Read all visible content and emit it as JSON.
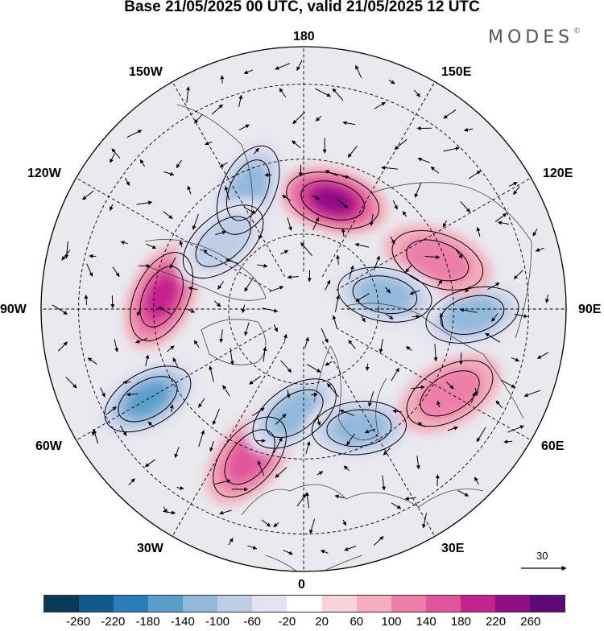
{
  "title": "Base 21/05/2025 00 UTC, valid 21/05/2025 12 UTC",
  "logo": "MODES",
  "logo_mark": "©",
  "lon_labels": {
    "top": "180",
    "bottom": "0",
    "left": "90W",
    "right": "90E",
    "upper_left": "150W",
    "upper_right": "150E",
    "mid_upper_left": "120W",
    "mid_upper_right": "120E",
    "mid_lower_left": "60W",
    "mid_lower_right": "60E",
    "lower_left": "30W",
    "lower_right": "30E"
  },
  "wind_reference": "30",
  "colorbar": {
    "colors": [
      "#0b3a57",
      "#0f5c8c",
      "#2a7db5",
      "#5a9fcb",
      "#90b9da",
      "#c0cde6",
      "#e3e3f1",
      "#ffffff",
      "#f6d4d8",
      "#f3afbe",
      "#ec7fa8",
      "#e1559c",
      "#c4248e",
      "#8f0f86",
      "#5c0a74"
    ],
    "ticks": [
      "-260",
      "-220",
      "-180",
      "-140",
      "-100",
      "-60",
      "-20",
      "20",
      "60",
      "100",
      "140",
      "180",
      "220",
      "260"
    ]
  },
  "anomaly_centers": [
    {
      "lon": 165,
      "lat": 60,
      "value": 220
    },
    {
      "lon": -155,
      "lat": 55,
      "value": -150
    },
    {
      "lon": -95,
      "lat": 52,
      "value": 200
    },
    {
      "lon": -60,
      "lat": 42,
      "value": -200
    },
    {
      "lon": -20,
      "lat": 48,
      "value": 160
    },
    {
      "lon": -5,
      "lat": 62,
      "value": -160
    },
    {
      "lon": 25,
      "lat": 55,
      "value": -160
    },
    {
      "lon": 60,
      "lat": 45,
      "value": 130
    },
    {
      "lon": 88,
      "lat": 45,
      "value": -150
    },
    {
      "lon": 110,
      "lat": 52,
      "value": 120
    },
    {
      "lon": 100,
      "lat": 68,
      "value": -170
    },
    {
      "lon": -130,
      "lat": 62,
      "value": -130
    }
  ]
}
